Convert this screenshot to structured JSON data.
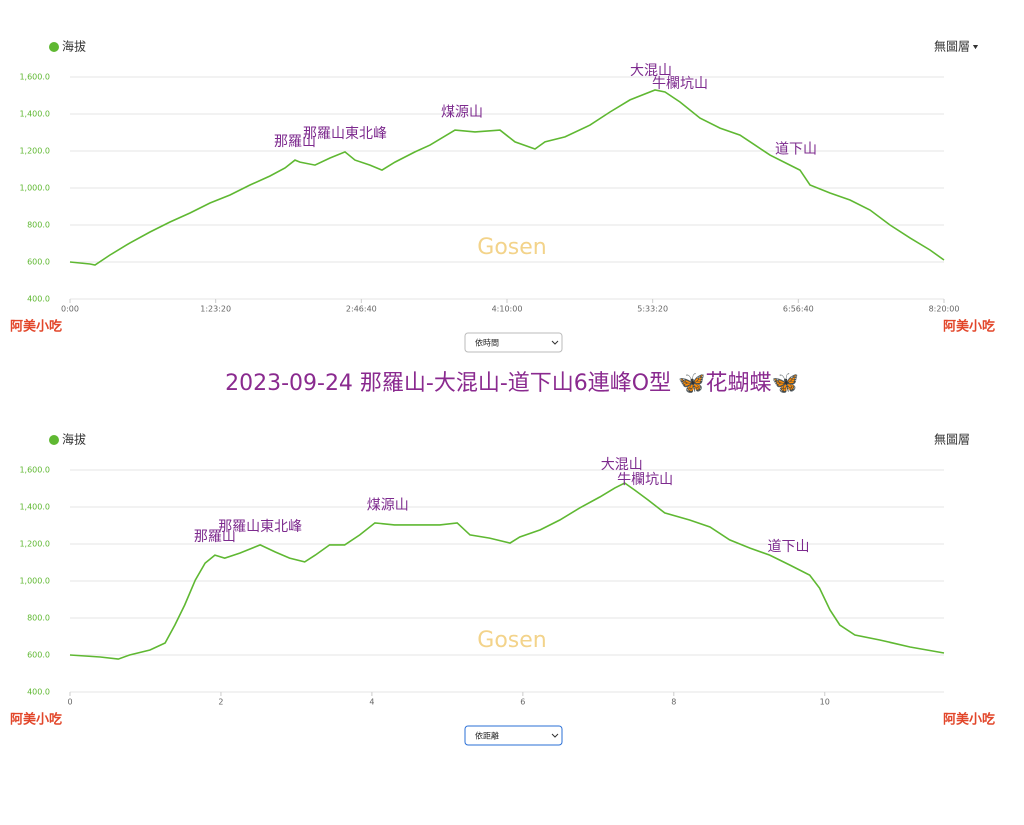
{
  "title": "2023-09-24 那羅山-大混山-道下山6連峰O型 🦋花蝴蝶🦋",
  "chart_data": [
    {
      "type": "line",
      "layer_menu": "無圖層",
      "selector": "依時間",
      "watermark": "Gosen",
      "credit_left": "阿美小吃",
      "credit_right": "阿美小吃",
      "grid": true,
      "series": [
        {
          "name": "海拔",
          "color": "#5fb832",
          "x": [
            0,
            687,
            858,
            1373,
            2060,
            2746,
            3433,
            4119,
            4806,
            5492,
            6179,
            6865,
            7380,
            7723,
            7895,
            8410,
            8924,
            9439,
            9783,
            10297,
            10709,
            11156,
            11842,
            12357,
            13215,
            13902,
            14760,
            15275,
            15961,
            16304,
            16991,
            17849,
            18535,
            19222,
            20080,
            20423,
            20938,
            21625,
            22311,
            22998,
            23513,
            24027,
            24714,
            25057,
            25400,
            26087,
            26773,
            27460,
            28146,
            28833,
            29519,
            30000
          ],
          "values": [
            600,
            589,
            584,
            638,
            703,
            762,
            816,
            865,
            919,
            962,
            1016,
            1065,
            1108,
            1151,
            1140,
            1124,
            1162,
            1195,
            1151,
            1124,
            1097,
            1140,
            1195,
            1232,
            1313,
            1303,
            1313,
            1249,
            1211,
            1249,
            1276,
            1340,
            1411,
            1476,
            1530,
            1519,
            1465,
            1378,
            1324,
            1286,
            1232,
            1178,
            1124,
            1097,
            1016,
            973,
            935,
            881,
            800,
            730,
            665,
            611
          ]
        }
      ],
      "annotations": [
        {
          "label": "那羅山",
          "x": 7723,
          "y": 1151
        },
        {
          "label": "那羅山東北峰",
          "x": 9439,
          "y": 1195
        },
        {
          "label": "煤源山",
          "x": 13455,
          "y": 1310
        },
        {
          "label": "大混山",
          "x": 19943,
          "y": 1535
        },
        {
          "label": "牛欄坑山",
          "x": 20938,
          "y": 1465
        },
        {
          "label": "道下山",
          "x": 24920,
          "y": 1110
        }
      ],
      "xlim": [
        0,
        30000
      ],
      "xticks": [
        {
          "value": 0,
          "label": "0:00"
        },
        {
          "value": 5000,
          "label": "1:23:20"
        },
        {
          "value": 10000,
          "label": "2:46:40"
        },
        {
          "value": 15000,
          "label": "4:10:00"
        },
        {
          "value": 20000,
          "label": "5:33:20"
        },
        {
          "value": 25000,
          "label": "6:56:40"
        },
        {
          "value": 30000,
          "label": "8:20:00"
        }
      ],
      "ylim": [
        400,
        1600
      ],
      "yticks": [
        {
          "value": 400,
          "label": "400.0"
        },
        {
          "value": 600,
          "label": "600.0"
        },
        {
          "value": 800,
          "label": "800.0"
        },
        {
          "value": 1000,
          "label": "1,000.0"
        },
        {
          "value": 1200,
          "label": "1,200.0"
        },
        {
          "value": 1400,
          "label": "1,400.0"
        },
        {
          "value": 1600,
          "label": "1,600.0"
        }
      ]
    },
    {
      "type": "line",
      "layer_menu": "無圖層",
      "selector": "依距離",
      "watermark": "Gosen",
      "credit_left": "阿美小吃",
      "credit_right": "阿美小吃",
      "grid": true,
      "series": [
        {
          "name": "海拔",
          "color": "#5fb832",
          "x": [
            0,
            0.4,
            0.64,
            0.79,
            1.06,
            1.26,
            1.39,
            1.52,
            1.66,
            1.79,
            1.92,
            2.05,
            2.25,
            2.52,
            2.72,
            2.91,
            3.11,
            3.25,
            3.44,
            3.64,
            3.84,
            4.04,
            4.3,
            4.64,
            4.9,
            5.13,
            5.3,
            5.56,
            5.83,
            5.96,
            6.23,
            6.49,
            6.75,
            7.02,
            7.22,
            7.35,
            7.48,
            7.66,
            7.88,
            8.21,
            8.48,
            8.74,
            9.01,
            9.27,
            9.54,
            9.8,
            9.93,
            10.07,
            10.2,
            10.4,
            10.73,
            11.13,
            11.58
          ],
          "values": [
            600,
            589,
            578,
            600,
            627,
            665,
            762,
            870,
            1005,
            1097,
            1140,
            1124,
            1151,
            1195,
            1157,
            1124,
            1103,
            1140,
            1195,
            1195,
            1249,
            1314,
            1303,
            1303,
            1303,
            1314,
            1249,
            1232,
            1205,
            1238,
            1276,
            1330,
            1394,
            1454,
            1503,
            1530,
            1492,
            1438,
            1368,
            1330,
            1292,
            1222,
            1178,
            1140,
            1086,
            1032,
            962,
            843,
            762,
            708,
            681,
            643,
            611
          ]
        }
      ],
      "annotations": [
        {
          "label": "那羅山",
          "x": 1.92,
          "y": 1140
        },
        {
          "label": "那羅山東北峰",
          "x": 2.52,
          "y": 1195
        },
        {
          "label": "煤源山",
          "x": 4.21,
          "y": 1310
        },
        {
          "label": "大混山",
          "x": 7.31,
          "y": 1530
        },
        {
          "label": "牛欄坑山",
          "x": 7.62,
          "y": 1450
        },
        {
          "label": "道下山",
          "x": 9.52,
          "y": 1086
        }
      ],
      "xlim": [
        0,
        11.58
      ],
      "xticks": [
        0,
        2,
        4,
        6,
        8,
        10
      ],
      "ylim": [
        400,
        1600
      ],
      "yticks": [
        {
          "value": 400,
          "label": "400.0"
        },
        {
          "value": 600,
          "label": "600.0"
        },
        {
          "value": 800,
          "label": "800.0"
        },
        {
          "value": 1000,
          "label": "1,000.0"
        },
        {
          "value": 1200,
          "label": "1,200.0"
        },
        {
          "value": 1400,
          "label": "1,400.0"
        },
        {
          "value": 1600,
          "label": "1,600.0"
        }
      ]
    }
  ]
}
